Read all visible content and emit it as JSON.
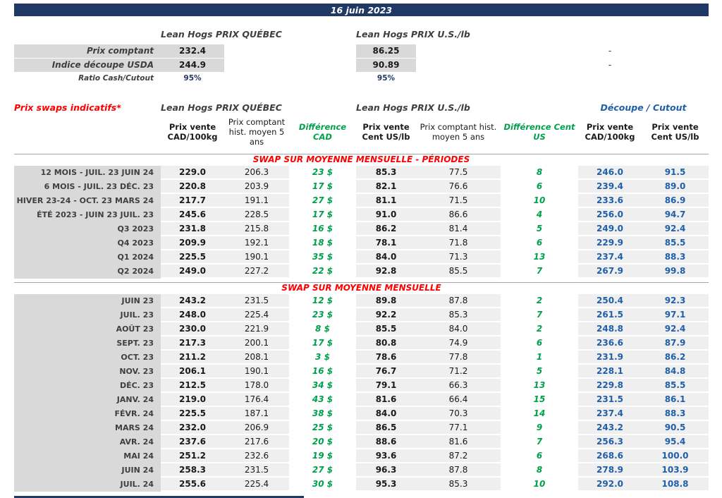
{
  "header": {
    "date": "16 juin 2023"
  },
  "spot": {
    "quebec_header": "Lean Hogs PRIX QUÉBEC",
    "us_header": "Lean Hogs PRIX U.S./lb",
    "rows": [
      {
        "label": "Prix comptant",
        "cad": "232.4",
        "us": "86.25",
        "dash": "-"
      },
      {
        "label": "Indice découpe USDA",
        "cad": "244.9",
        "us": "90.89",
        "dash": "-"
      },
      {
        "label": "Ratio Cash/Cutout",
        "cad": "95%",
        "us": "95%",
        "dash": ""
      }
    ]
  },
  "swaps": {
    "title": "Prix swaps indicatifs*",
    "quebec_header": "Lean Hogs PRIX QUÉBEC",
    "us_header": "Lean Hogs PRIX U.S./lb",
    "cutout_header": "Découpe / Cutout",
    "column_headers": {
      "cad_sale": "Prix vente CAD/100kg",
      "cad_hist": "Prix comptant hist. moyen 5 ans",
      "cad_diff": "Différence CAD",
      "us_sale": "Prix vente Cent US/lb",
      "us_hist": "Prix comptant hist. moyen 5 ans",
      "us_diff": "Différence Cent US",
      "cutout_cad": "Prix vente CAD/100kg",
      "cutout_us": "Prix vente Cent US/lb"
    },
    "periods": {
      "header": "SWAP SUR MOYENNE MENSUELLE - PÉRIODES",
      "rows": [
        [
          "12 MOIS - JUIL. 23 JUIN 24",
          "229.0",
          "206.3",
          "23 $",
          "85.3",
          "77.5",
          "8",
          "246.0",
          "91.5"
        ],
        [
          "6 MOIS - JUIL. 23 DÉC. 23",
          "220.8",
          "203.9",
          "17 $",
          "82.1",
          "76.6",
          "6",
          "239.4",
          "89.0"
        ],
        [
          "HIVER 23-24 -  OCT. 23 MARS 24",
          "217.7",
          "191.1",
          "27 $",
          "81.1",
          "71.5",
          "10",
          "233.6",
          "86.9"
        ],
        [
          "ÉTÉ 2023 - JUIN 23 JUIL. 23",
          "245.6",
          "228.5",
          "17 $",
          "91.0",
          "86.6",
          "4",
          "256.0",
          "94.7"
        ],
        [
          "Q3 2023",
          "231.8",
          "215.8",
          "16 $",
          "86.2",
          "81.4",
          "5",
          "249.0",
          "92.4"
        ],
        [
          "Q4 2023",
          "209.9",
          "192.1",
          "18 $",
          "78.1",
          "71.8",
          "6",
          "229.9",
          "85.5"
        ],
        [
          "Q1 2024",
          "225.5",
          "190.1",
          "35 $",
          "84.0",
          "71.3",
          "13",
          "237.4",
          "88.3"
        ],
        [
          "Q2 2024",
          "249.0",
          "227.2",
          "22 $",
          "92.8",
          "85.5",
          "7",
          "267.9",
          "99.8"
        ]
      ]
    },
    "monthly": {
      "header": "SWAP SUR MOYENNE MENSUELLE",
      "rows": [
        [
          "JUIN 23",
          "243.2",
          "231.5",
          "12 $",
          "89.8",
          "87.8",
          "2",
          "250.4",
          "92.3"
        ],
        [
          "JUIL. 23",
          "248.0",
          "225.4",
          "23 $",
          "92.2",
          "85.3",
          "7",
          "261.5",
          "97.1"
        ],
        [
          "AOÛT 23",
          "230.0",
          "221.9",
          "8 $",
          "85.5",
          "84.0",
          "2",
          "248.8",
          "92.4"
        ],
        [
          "SEPT. 23",
          "217.3",
          "200.1",
          "17 $",
          "80.8",
          "74.9",
          "6",
          "236.6",
          "87.9"
        ],
        [
          "OCT. 23",
          "211.2",
          "208.1",
          "3 $",
          "78.6",
          "77.8",
          "1",
          "231.9",
          "86.2"
        ],
        [
          "NOV. 23",
          "206.1",
          "190.1",
          "16 $",
          "76.7",
          "71.2",
          "5",
          "228.1",
          "84.8"
        ],
        [
          "DÉC. 23",
          "212.5",
          "178.0",
          "34 $",
          "79.1",
          "66.3",
          "13",
          "229.8",
          "85.5"
        ],
        [
          "JANV. 24",
          "219.0",
          "176.4",
          "43 $",
          "81.6",
          "66.4",
          "15",
          "231.5",
          "86.1"
        ],
        [
          "FÉVR. 24",
          "225.5",
          "187.1",
          "38 $",
          "84.0",
          "70.3",
          "14",
          "237.4",
          "88.3"
        ],
        [
          "MARS 24",
          "232.0",
          "206.9",
          "25 $",
          "86.5",
          "77.1",
          "9",
          "243.2",
          "90.5"
        ],
        [
          "AVR. 24",
          "237.6",
          "217.6",
          "20 $",
          "88.6",
          "81.6",
          "7",
          "256.3",
          "95.4"
        ],
        [
          "MAI 24",
          "251.2",
          "232.6",
          "19 $",
          "93.6",
          "87.2",
          "6",
          "268.6",
          "100.0"
        ],
        [
          "JUIN 24",
          "258.3",
          "231.5",
          "27 $",
          "96.3",
          "87.8",
          "8",
          "278.9",
          "103.9"
        ],
        [
          "JUIL. 24",
          "255.6",
          "225.4",
          "30 $",
          "95.3",
          "85.3",
          "10",
          "292.0",
          "108.8"
        ]
      ]
    }
  },
  "colors": {
    "navy": "#1F3864",
    "red": "#FF0000",
    "green": "#00A04C",
    "blue": "#1F5FA8",
    "label_bg": "#D9D9D9",
    "data_bg": "#EFEFEF"
  }
}
